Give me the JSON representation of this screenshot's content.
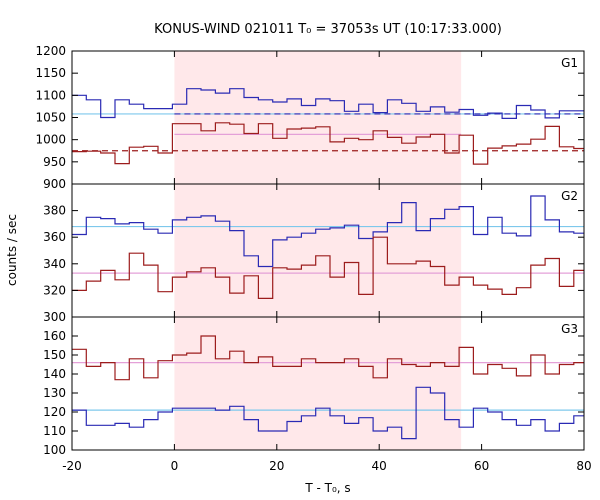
{
  "title": "KONUS-WIND 021011 T₀ = 37053s UT (10:17:33.000)",
  "xlabel": "T - T₀, s",
  "ylabel": "counts / sec",
  "colors": {
    "blue": "#2a2ab4",
    "red": "#9c1c1c",
    "cyan": "#7ec8ec",
    "pink": "#e4a0d8",
    "shade": "#ffe8ea"
  },
  "chart_data": {
    "type": "line",
    "style": "step histogram, 3 stacked panels sharing x axis",
    "xlim": [
      -20,
      80
    ],
    "x_ticks": [
      -20,
      0,
      20,
      40,
      60,
      80
    ],
    "shaded_interval": [
      0,
      56
    ],
    "bin_edges": [
      -20,
      -17.2,
      -14.4,
      -11.6,
      -8.8,
      -6,
      -3.2,
      -0.4,
      2.4,
      5.2,
      8,
      10.8,
      13.6,
      16.4,
      19.2,
      22,
      24.8,
      27.6,
      30.4,
      33.2,
      36,
      38.8,
      41.6,
      44.4,
      47.2,
      50,
      52.8,
      55.6,
      58.4,
      61.2,
      64,
      66.8,
      69.6,
      72.4,
      75.2,
      78,
      80
    ],
    "panels": [
      {
        "label": "G1",
        "ylim": [
          900,
          1200
        ],
        "y_ticks": [
          900,
          950,
          1000,
          1050,
          1100,
          1150,
          1200
        ],
        "series": [
          {
            "color": "blue",
            "values": [
              1100,
              1090,
              1050,
              1090,
              1080,
              1070,
              1070,
              1080,
              1115,
              1112,
              1105,
              1115,
              1095,
              1090,
              1085,
              1092,
              1077,
              1092,
              1088,
              1064,
              1080,
              1061,
              1090,
              1082,
              1064,
              1074,
              1062,
              1068,
              1055,
              1060,
              1048,
              1077,
              1067,
              1049,
              1065,
              1065
            ]
          },
          {
            "color": "red",
            "values": [
              973,
              974,
              970,
              946,
              983,
              985,
              970,
              1036,
              1036,
              1020,
              1038,
              1035,
              1014,
              1036,
              1003,
              1024,
              1026,
              1029,
              995,
              1003,
              1000,
              1020,
              1005,
              992,
              1006,
              1012,
              970,
              1010,
              945,
              981,
              986,
              990,
              1001,
              1030,
              984,
              980
            ]
          }
        ],
        "background": [
          {
            "color": "cyan",
            "style": "solid",
            "value": 1058,
            "x_range": [
              -20,
              80
            ]
          },
          {
            "color": "pink",
            "style": "solid",
            "value": 1012,
            "x_range": [
              0,
              56
            ]
          },
          {
            "color": "blue",
            "style": "dashed",
            "value": 1058,
            "x_range": [
              0,
              80
            ]
          },
          {
            "color": "red",
            "style": "dashed",
            "value": 975,
            "x_range": [
              -20,
              80
            ]
          }
        ]
      },
      {
        "label": "G2",
        "ylim": [
          300,
          400
        ],
        "y_ticks": [
          300,
          320,
          340,
          360,
          380
        ],
        "series": [
          {
            "color": "blue",
            "values": [
              362,
              375,
              374,
              370,
              371,
              366,
              363,
              373,
              375,
              376,
              372,
              365,
              346,
              338,
              358,
              360,
              363,
              366,
              367,
              369,
              359,
              364,
              371,
              386,
              365,
              374,
              381,
              383,
              362,
              375,
              363,
              361,
              391,
              373,
              364,
              363
            ]
          },
          {
            "color": "red",
            "values": [
              320,
              327,
              335,
              328,
              348,
              339,
              319,
              330,
              334,
              337,
              330,
              318,
              331,
              314,
              337,
              336,
              339,
              346,
              330,
              341,
              317,
              360,
              340,
              340,
              342,
              338,
              324,
              330,
              324,
              321,
              317,
              322,
              339,
              344,
              323,
              335
            ]
          }
        ],
        "background": [
          {
            "color": "cyan",
            "style": "solid",
            "value": 368,
            "x_range": [
              -20,
              80
            ]
          },
          {
            "color": "pink",
            "style": "solid",
            "value": 333,
            "x_range": [
              -20,
              80
            ]
          }
        ]
      },
      {
        "label": "G3",
        "ylim": [
          100,
          170
        ],
        "y_ticks": [
          100,
          110,
          120,
          130,
          140,
          150,
          160
        ],
        "series": [
          {
            "color": "red",
            "values": [
              153,
              144,
              146,
              137,
              148,
              138,
              147,
              150,
              151,
              160,
              148,
              152,
              146,
              149,
              144,
              144,
              148,
              146,
              146,
              148,
              144,
              138,
              148,
              145,
              144,
              146,
              144,
              154,
              140,
              145,
              143,
              139,
              150,
              140,
              145,
              146
            ]
          },
          {
            "color": "blue",
            "values": [
              121,
              113,
              113,
              114,
              112,
              116,
              120,
              122,
              122,
              122,
              121,
              123,
              116,
              110,
              110,
              115,
              118,
              122,
              118,
              114,
              117,
              110,
              112,
              106,
              133,
              130,
              116,
              112,
              122,
              120,
              116,
              113,
              116,
              110,
              114,
              118
            ]
          }
        ],
        "background": [
          {
            "color": "cyan",
            "style": "solid",
            "value": 121,
            "x_range": [
              -20,
              80
            ]
          },
          {
            "color": "pink",
            "style": "solid",
            "value": 146,
            "x_range": [
              -20,
              80
            ]
          }
        ]
      }
    ]
  }
}
